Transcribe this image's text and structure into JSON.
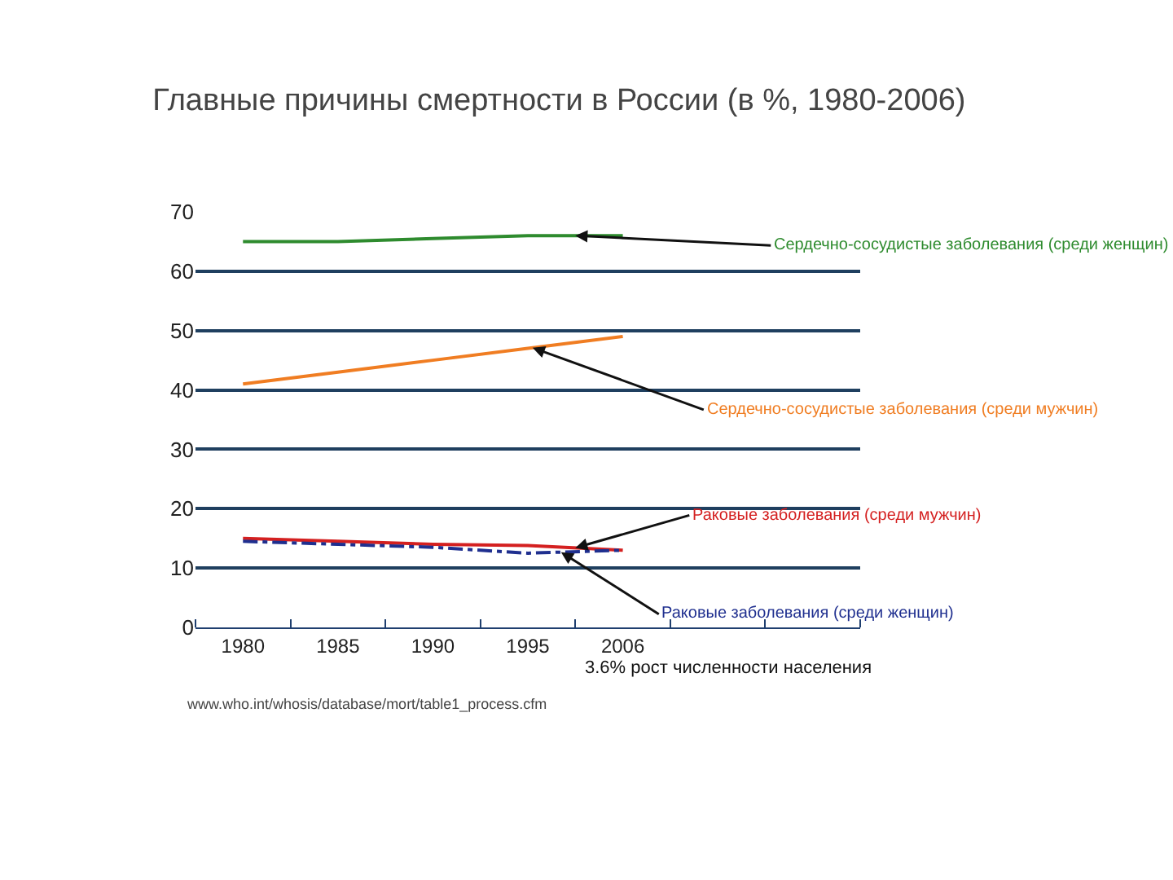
{
  "chart_data": {
    "type": "line",
    "title": "Главные причины смертности в России (в %, 1980-2006)",
    "categories": [
      "1980",
      "1985",
      "1990",
      "1995",
      "2006",
      null,
      null
    ],
    "series": [
      {
        "name": "Сердечно-сосудистые заболевания (среди женщин)",
        "color": "#2e8b2e",
        "values": [
          65,
          65,
          65.5,
          66,
          66,
          null,
          null
        ]
      },
      {
        "name": "Сердечно-сосудистые заболевания (среди мужчин)",
        "color": "#f07d22",
        "values": [
          41,
          43,
          45,
          47,
          49,
          null,
          null
        ]
      },
      {
        "name": "Раковые заболевания (среди мужчин)",
        "color": "#d42020",
        "values": [
          15,
          14.5,
          14,
          13.8,
          13,
          null,
          null
        ]
      },
      {
        "name": "Раковые заболевания (среди женщин)",
        "color": "#1f2f8f",
        "line_style": "dashed",
        "values": [
          14.5,
          14,
          13.5,
          12.5,
          13,
          null,
          null
        ]
      }
    ],
    "ylim": [
      0,
      70
    ],
    "yticks": [
      0,
      10,
      20,
      30,
      40,
      50,
      60,
      70
    ],
    "grid": "y",
    "legend": false,
    "marker": "none",
    "line_style": "solid",
    "annotations": [
      "3.6% рост численности населения",
      "www.who.int/whosis/database/mort/table1_process.cfm"
    ]
  }
}
